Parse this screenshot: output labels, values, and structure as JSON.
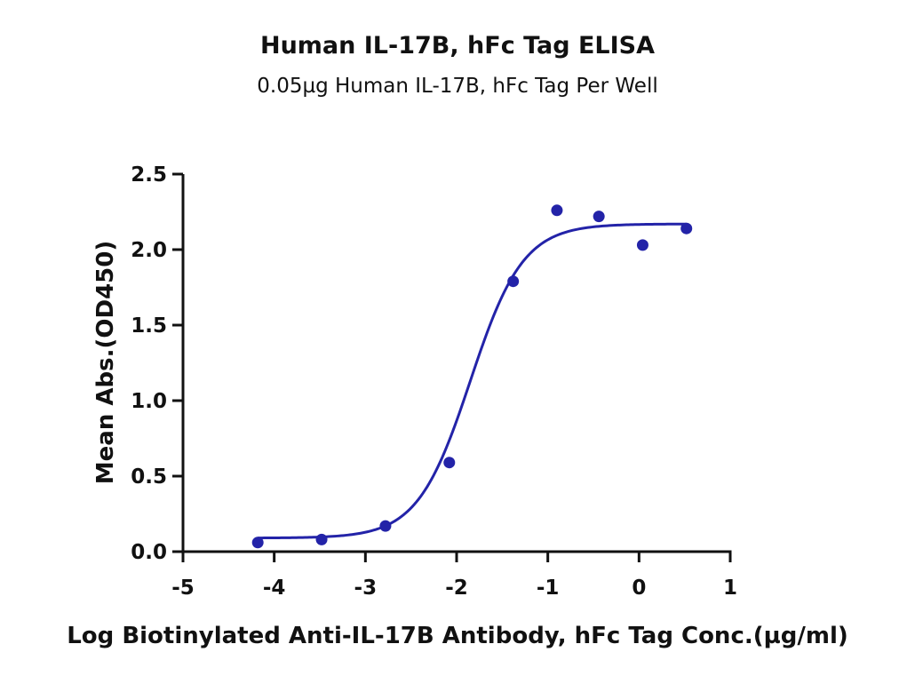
{
  "chart_data": {
    "type": "scatter",
    "title": "Human IL-17B, hFc Tag ELISA",
    "subtitle": "0.05µg Human IL-17B, hFc Tag Per Well",
    "xlabel": "Log Biotinylated Anti-IL-17B Antibody, hFc Tag Conc.(µg/ml)",
    "ylabel": "Mean Abs.(OD450)",
    "xlim": [
      -5,
      1
    ],
    "ylim": [
      0,
      2.5
    ],
    "x_ticks": [
      "-5",
      "-4",
      "-3",
      "-2",
      "-1",
      "0",
      "1"
    ],
    "y_ticks": [
      "0.0",
      "0.5",
      "1.0",
      "1.5",
      "2.0",
      "2.5"
    ],
    "grid": false,
    "series": [
      {
        "color": "#2323a8",
        "points": [
          {
            "x": -4.18,
            "y": 0.06
          },
          {
            "x": -3.48,
            "y": 0.08
          },
          {
            "x": -2.78,
            "y": 0.17
          },
          {
            "x": -2.08,
            "y": 0.59
          },
          {
            "x": -1.38,
            "y": 1.79
          },
          {
            "x": -0.9,
            "y": 2.26
          },
          {
            "x": -0.44,
            "y": 2.22
          },
          {
            "x": 0.04,
            "y": 2.03
          },
          {
            "x": 0.52,
            "y": 2.14
          }
        ],
        "fit": {
          "bottom": 0.09,
          "top": 2.17,
          "logEC50": -1.85,
          "hill": 1.5
        }
      }
    ]
  }
}
